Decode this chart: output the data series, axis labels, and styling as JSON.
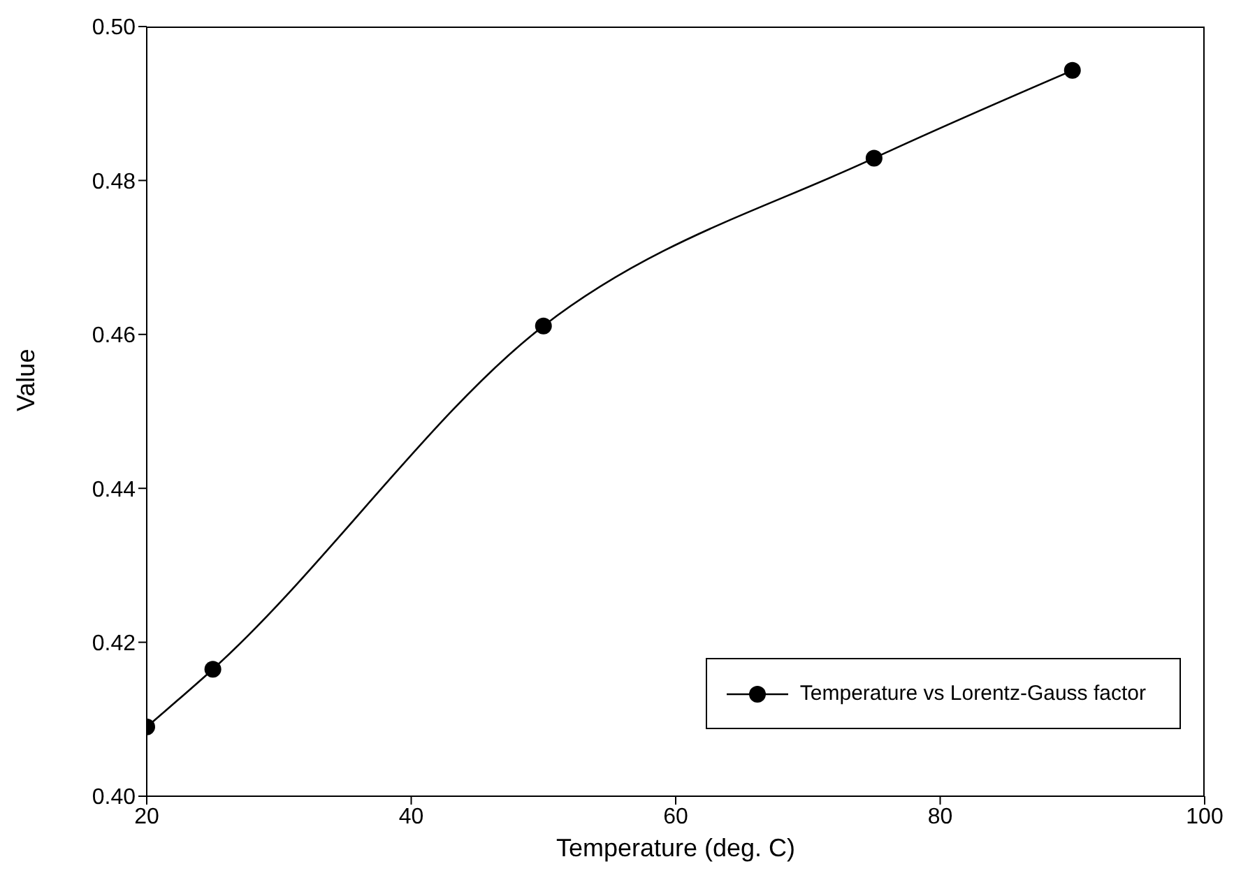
{
  "chart_data": {
    "type": "line",
    "xlabel": "Temperature (deg. C)",
    "ylabel": "Value",
    "x": [
      20,
      25,
      50,
      75,
      90
    ],
    "series": [
      {
        "name": "Temperature vs Lorentz-Gauss factor",
        "color": "#000000",
        "values": [
          0.409,
          0.4165,
          0.4611,
          0.4829,
          0.4943
        ]
      }
    ],
    "xlim": [
      20,
      100
    ],
    "xticks": [
      20,
      40,
      60,
      80,
      100
    ],
    "ylim": [
      0.4,
      0.5
    ],
    "yticks": [
      {
        "value": 0.4,
        "label": "0.40"
      },
      {
        "value": 0.42,
        "label": "0.42"
      },
      {
        "value": 0.44,
        "label": "0.44"
      },
      {
        "value": 0.46,
        "label": "0.46"
      },
      {
        "value": 0.48,
        "label": "0.48"
      },
      {
        "value": 0.5,
        "label": "0.50"
      }
    ],
    "marker": "circle",
    "line_style": "solid",
    "legend": "bottom right",
    "grid": false
  }
}
